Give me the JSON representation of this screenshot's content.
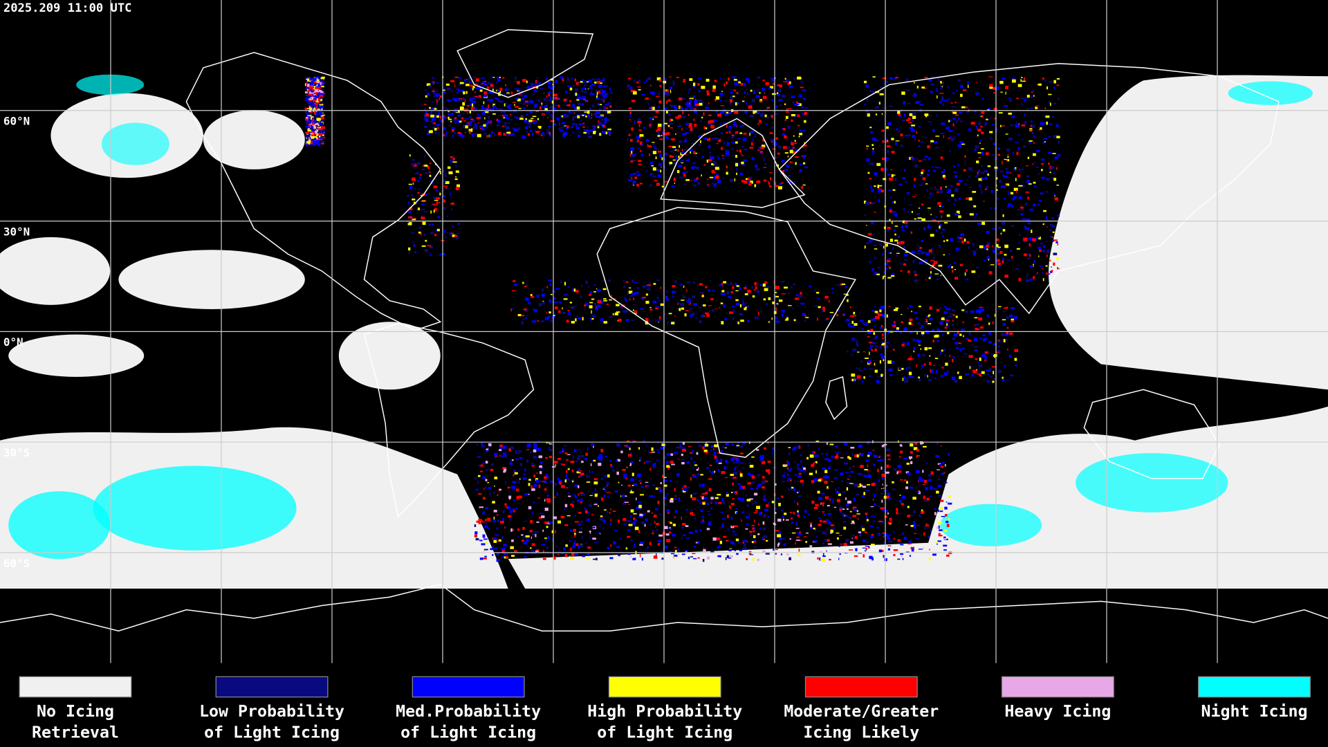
{
  "map": {
    "timestamp": "2025.209 11:00 UTC",
    "latitude_labels": [
      "60°N",
      "30°N",
      "0°N",
      "30°S",
      "60°S"
    ],
    "legend": [
      {
        "label": [
          "No Icing",
          "Retrieval"
        ],
        "color": "#f0f0f0"
      },
      {
        "label": [
          "Low Probability",
          "of Light Icing"
        ],
        "color": "#0a0a80"
      },
      {
        "label": [
          "Med.Probability",
          "of Light Icing"
        ],
        "color": "#0000ff"
      },
      {
        "label": [
          "High Probability",
          "of Light Icing"
        ],
        "color": "#ffff00"
      },
      {
        "label": [
          "Moderate/Greater",
          "Icing Likely"
        ],
        "color": "#ff0000"
      },
      {
        "label": [
          "Heavy Icing",
          ""
        ],
        "color": "#e8a8e8"
      },
      {
        "label": [
          "Night Icing",
          ""
        ],
        "color": "#00ffff"
      }
    ]
  }
}
